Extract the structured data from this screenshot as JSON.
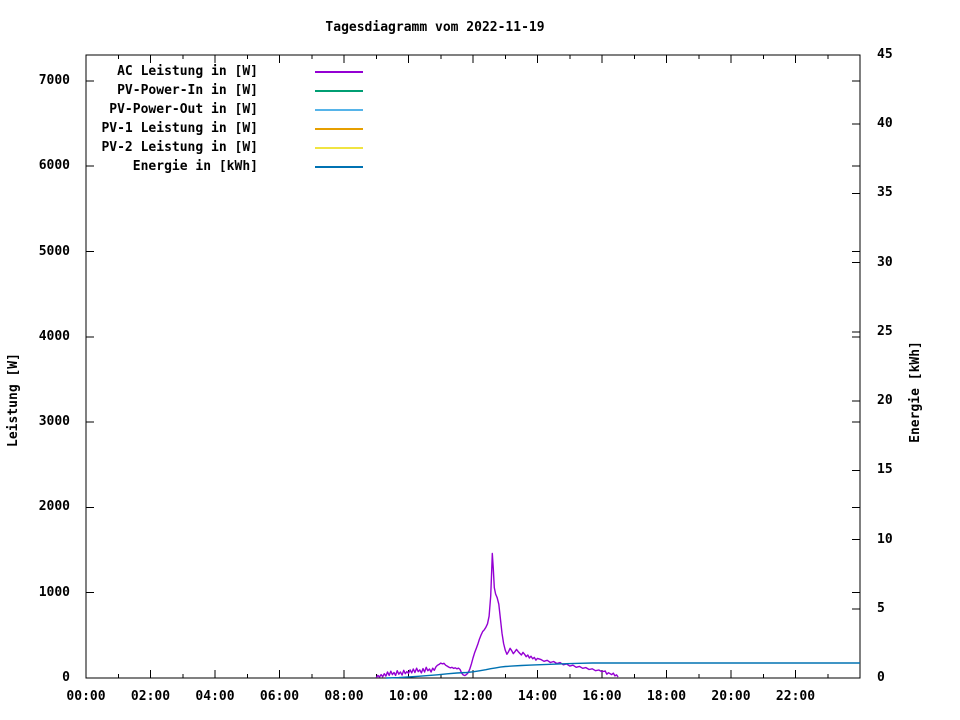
{
  "title": "Tagesdiagramm vom 2022-11-19",
  "chart_data": {
    "type": "line",
    "title": "Tagesdiagramm vom 2022-11-19",
    "background": "#ffffff",
    "border_color": "#000000",
    "grid": false,
    "legend_position": "top-left-inside",
    "x_axis": {
      "label": "",
      "unit": "time",
      "range_hours": [
        0,
        24
      ],
      "tick_labels": [
        "00:00",
        "02:00",
        "04:00",
        "06:00",
        "08:00",
        "10:00",
        "12:00",
        "14:00",
        "16:00",
        "18:00",
        "20:00",
        "22:00"
      ],
      "major_every_hours": 2,
      "minor_every_hours": 1
    },
    "y_left": {
      "label": "Leistung [W]",
      "ticks": [
        0,
        1000,
        2000,
        3000,
        4000,
        5000,
        6000,
        7000
      ],
      "range": [
        0,
        7304
      ]
    },
    "y_right": {
      "label": "Energie [kWh]",
      "ticks": [
        0,
        5,
        10,
        15,
        20,
        25,
        30,
        35,
        40,
        45
      ],
      "range": [
        0,
        45
      ]
    },
    "legend": [
      {
        "label": "AC Leistung in [W]",
        "color": "#9400D3"
      },
      {
        "label": "PV-Power-In in [W]",
        "color": "#009E73"
      },
      {
        "label": "PV-Power-Out in [W]",
        "color": "#56B4E9"
      },
      {
        "label": "PV-1 Leistung in [W]",
        "color": "#E69F00"
      },
      {
        "label": "PV-2 Leistung in [W]",
        "color": "#F0E442"
      },
      {
        "label": "Energie in [kWh]",
        "color": "#0072B2"
      }
    ],
    "series": [
      {
        "name": "AC Leistung in [W]",
        "axis": "left",
        "color": "#9400D3",
        "points": [
          [
            9.0,
            5
          ],
          [
            9.05,
            30
          ],
          [
            9.1,
            12
          ],
          [
            9.15,
            40
          ],
          [
            9.2,
            15
          ],
          [
            9.25,
            50
          ],
          [
            9.3,
            22
          ],
          [
            9.35,
            70
          ],
          [
            9.4,
            30
          ],
          [
            9.45,
            80
          ],
          [
            9.5,
            40
          ],
          [
            9.55,
            65
          ],
          [
            9.6,
            30
          ],
          [
            9.65,
            85
          ],
          [
            9.7,
            45
          ],
          [
            9.75,
            70
          ],
          [
            9.8,
            35
          ],
          [
            9.85,
            90
          ],
          [
            9.9,
            50
          ],
          [
            9.95,
            75
          ],
          [
            10.0,
            55
          ],
          [
            10.05,
            95
          ],
          [
            10.1,
            60
          ],
          [
            10.15,
            105
          ],
          [
            10.2,
            65
          ],
          [
            10.25,
            115
          ],
          [
            10.3,
            75
          ],
          [
            10.35,
            95
          ],
          [
            10.4,
            60
          ],
          [
            10.45,
            110
          ],
          [
            10.5,
            70
          ],
          [
            10.55,
            125
          ],
          [
            10.6,
            85
          ],
          [
            10.65,
            105
          ],
          [
            10.7,
            70
          ],
          [
            10.75,
            115
          ],
          [
            10.8,
            90
          ],
          [
            10.85,
            130
          ],
          [
            10.9,
            150
          ],
          [
            10.95,
            160
          ],
          [
            11.0,
            175
          ],
          [
            11.05,
            165
          ],
          [
            11.1,
            172
          ],
          [
            11.15,
            150
          ],
          [
            11.2,
            140
          ],
          [
            11.25,
            128
          ],
          [
            11.3,
            118
          ],
          [
            11.35,
            126
          ],
          [
            11.4,
            112
          ],
          [
            11.45,
            120
          ],
          [
            11.5,
            108
          ],
          [
            11.55,
            116
          ],
          [
            11.6,
            100
          ],
          [
            11.65,
            55
          ],
          [
            11.7,
            35
          ],
          [
            11.75,
            28
          ],
          [
            11.8,
            42
          ],
          [
            11.85,
            62
          ],
          [
            11.9,
            105
          ],
          [
            11.95,
            165
          ],
          [
            12.0,
            235
          ],
          [
            12.05,
            295
          ],
          [
            12.1,
            345
          ],
          [
            12.15,
            395
          ],
          [
            12.2,
            455
          ],
          [
            12.25,
            505
          ],
          [
            12.3,
            545
          ],
          [
            12.35,
            565
          ],
          [
            12.4,
            595
          ],
          [
            12.45,
            635
          ],
          [
            12.5,
            725
          ],
          [
            12.55,
            960
          ],
          [
            12.58,
            1260
          ],
          [
            12.6,
            1460
          ],
          [
            12.63,
            1280
          ],
          [
            12.66,
            1060
          ],
          [
            12.7,
            985
          ],
          [
            12.75,
            940
          ],
          [
            12.8,
            865
          ],
          [
            12.85,
            695
          ],
          [
            12.9,
            525
          ],
          [
            12.95,
            405
          ],
          [
            13.0,
            325
          ],
          [
            13.05,
            278
          ],
          [
            13.1,
            308
          ],
          [
            13.15,
            348
          ],
          [
            13.2,
            320
          ],
          [
            13.25,
            285
          ],
          [
            13.3,
            308
          ],
          [
            13.35,
            335
          ],
          [
            13.4,
            310
          ],
          [
            13.45,
            288
          ],
          [
            13.5,
            270
          ],
          [
            13.55,
            300
          ],
          [
            13.6,
            278
          ],
          [
            13.65,
            250
          ],
          [
            13.7,
            270
          ],
          [
            13.75,
            235
          ],
          [
            13.8,
            255
          ],
          [
            13.85,
            225
          ],
          [
            13.9,
            242
          ],
          [
            13.95,
            210
          ],
          [
            14.0,
            230
          ],
          [
            14.1,
            218
          ],
          [
            14.2,
            196
          ],
          [
            14.3,
            208
          ],
          [
            14.4,
            182
          ],
          [
            14.5,
            194
          ],
          [
            14.6,
            170
          ],
          [
            14.7,
            180
          ],
          [
            14.8,
            155
          ],
          [
            14.9,
            165
          ],
          [
            15.0,
            140
          ],
          [
            15.1,
            150
          ],
          [
            15.2,
            126
          ],
          [
            15.3,
            136
          ],
          [
            15.4,
            114
          ],
          [
            15.5,
            122
          ],
          [
            15.6,
            100
          ],
          [
            15.7,
            108
          ],
          [
            15.8,
            86
          ],
          [
            15.9,
            94
          ],
          [
            16.0,
            74
          ],
          [
            16.1,
            82
          ],
          [
            16.15,
            45
          ],
          [
            16.2,
            62
          ],
          [
            16.3,
            40
          ],
          [
            16.35,
            58
          ],
          [
            16.4,
            25
          ],
          [
            16.45,
            38
          ],
          [
            16.5,
            12
          ]
        ]
      },
      {
        "name": "PV-Power-In in [W]",
        "axis": "left",
        "color": "#009E73",
        "points": []
      },
      {
        "name": "PV-Power-Out in [W]",
        "axis": "left",
        "color": "#56B4E9",
        "points": []
      },
      {
        "name": "PV-1 Leistung in [W]",
        "axis": "left",
        "color": "#E69F00",
        "points": []
      },
      {
        "name": "PV-2 Leistung in [W]",
        "axis": "left",
        "color": "#F0E442",
        "points": []
      },
      {
        "name": "Energie in [kWh]",
        "axis": "right",
        "color": "#0072B2",
        "points": [
          [
            9.3,
            0.0
          ],
          [
            9.7,
            0.03
          ],
          [
            10.0,
            0.07
          ],
          [
            10.3,
            0.12
          ],
          [
            10.6,
            0.17
          ],
          [
            10.9,
            0.23
          ],
          [
            11.2,
            0.3
          ],
          [
            11.5,
            0.36
          ],
          [
            11.8,
            0.4
          ],
          [
            12.0,
            0.45
          ],
          [
            12.2,
            0.52
          ],
          [
            12.4,
            0.6
          ],
          [
            12.55,
            0.67
          ],
          [
            12.7,
            0.73
          ],
          [
            12.85,
            0.79
          ],
          [
            13.0,
            0.83
          ],
          [
            13.2,
            0.86
          ],
          [
            13.5,
            0.9
          ],
          [
            13.8,
            0.93
          ],
          [
            14.1,
            0.96
          ],
          [
            14.5,
            1.0
          ],
          [
            14.9,
            1.03
          ],
          [
            15.3,
            1.06
          ],
          [
            15.7,
            1.08
          ],
          [
            16.2,
            1.08
          ],
          [
            24.0,
            1.08
          ]
        ]
      }
    ]
  }
}
